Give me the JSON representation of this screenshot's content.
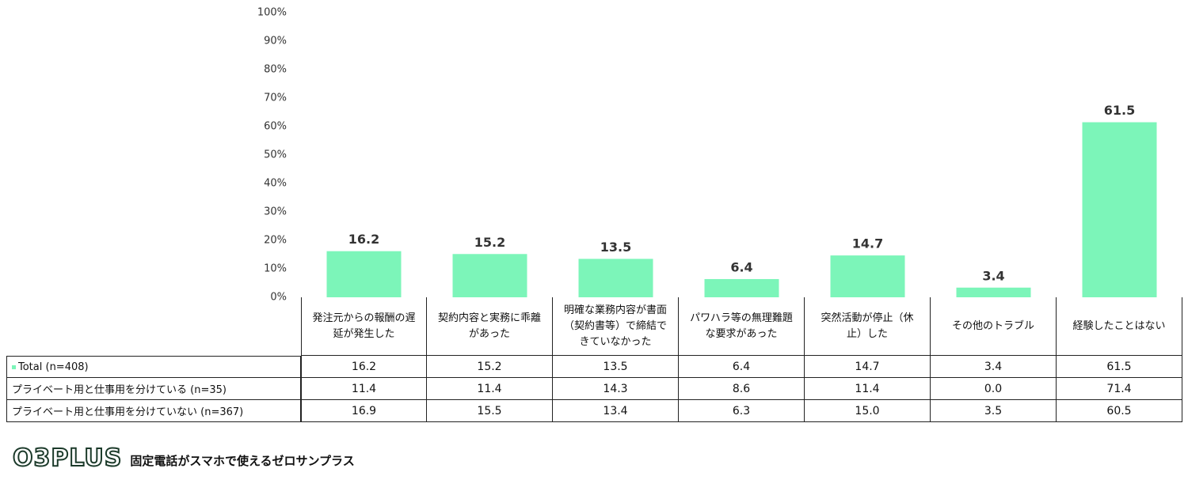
{
  "chart_data": {
    "type": "bar",
    "categories": [
      "発注元からの報酬の遅延が発生した",
      "契約内容と実務に乖離があった",
      "明確な業務内容が書面（契約書等）で締結できていなかった",
      "パワハラ等の無理難題な要求があった",
      "突然活動が停止（休止）した",
      "その他のトラブル",
      "経験したことはない"
    ],
    "series": [
      {
        "name": "Total (n=408)",
        "color": "#7cf5b9",
        "values": [
          16.2,
          15.2,
          13.5,
          6.4,
          14.7,
          3.4,
          61.5
        ],
        "value_labels": [
          "16.2",
          "15.2",
          "13.5",
          "6.4",
          "14.7",
          "3.4",
          "61.5"
        ]
      },
      {
        "name": "プライベート用と仕事用を分けている (n=35)",
        "values": [
          11.4,
          11.4,
          14.3,
          8.6,
          11.4,
          0,
          71.4
        ],
        "value_labels": [
          "11.4",
          "11.4",
          "14.3",
          "8.6",
          "11.4",
          "0.0",
          "71.4"
        ]
      },
      {
        "name": "プライベート用と仕事用を分けていない (n=367)",
        "values": [
          16.9,
          15.5,
          13.4,
          6.3,
          15,
          3.5,
          60.5
        ],
        "value_labels": [
          "16.9",
          "15.5",
          "13.4",
          "6.3",
          "15.0",
          "3.5",
          "60.5"
        ]
      }
    ],
    "ylim": [
      0,
      100
    ],
    "yticks": [
      {
        "value": 0,
        "label": "0%"
      },
      {
        "value": 10,
        "label": "10%"
      },
      {
        "value": 20,
        "label": "20%"
      },
      {
        "value": 30,
        "label": "30%"
      },
      {
        "value": 40,
        "label": "40%"
      },
      {
        "value": 50,
        "label": "50%"
      },
      {
        "value": 60,
        "label": "60%"
      },
      {
        "value": 70,
        "label": "70%"
      },
      {
        "value": 80,
        "label": "80%"
      },
      {
        "value": 90,
        "label": "90%"
      },
      {
        "value": 100,
        "label": "100%"
      }
    ],
    "grid": false
  },
  "footer": {
    "logo": "O3PLUS",
    "tagline": "固定電話がスマホで使えるゼロサンプラス"
  }
}
